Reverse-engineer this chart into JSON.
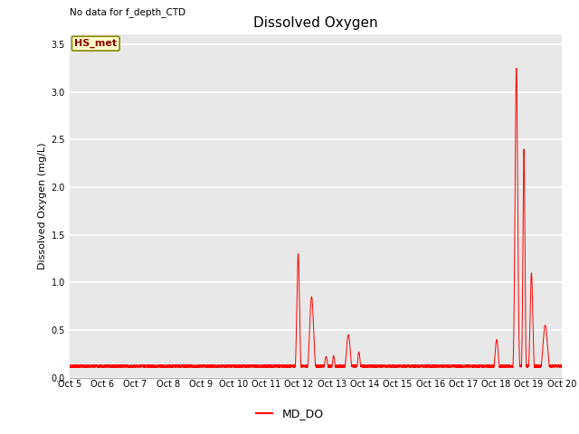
{
  "title": "Dissolved Oxygen",
  "top_left_text": "No data for f_depth_CTD",
  "ylabel": "Dissolved Oxygen (mg/L)",
  "ylim": [
    0.0,
    3.6
  ],
  "yticks": [
    0.0,
    0.5,
    1.0,
    1.5,
    2.0,
    2.5,
    3.0,
    3.5
  ],
  "x_start": 5,
  "x_end": 20,
  "xtick_labels": [
    "Oct 5",
    "Oct 6",
    "Oct 7",
    "Oct 8",
    "Oct 9",
    "Oct 10",
    "Oct 11",
    "Oct 12",
    "Oct 13",
    "Oct 14",
    "Oct 15",
    "Oct 16",
    "Oct 17",
    "Oct 18",
    "Oct 19",
    "Oct 20"
  ],
  "xtick_positions": [
    5,
    6,
    7,
    8,
    9,
    10,
    11,
    12,
    13,
    14,
    15,
    16,
    17,
    18,
    19,
    20
  ],
  "line_color": "#ff0000",
  "line_label": "MD_DO",
  "box_label": "HS_met",
  "box_facecolor": "#ffffcc",
  "box_edgecolor": "#888800",
  "background_color": "#e8e8e8",
  "title_fontsize": 11,
  "label_fontsize": 8,
  "tick_fontsize": 7,
  "legend_fontsize": 9
}
